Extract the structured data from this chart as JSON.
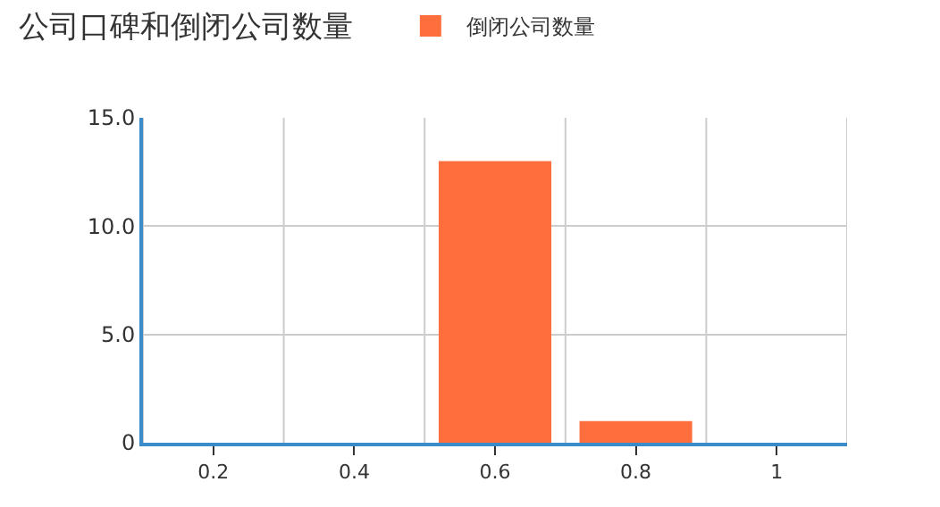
{
  "chart_data": {
    "type": "bar",
    "title": "公司口碑和倒闭公司数量",
    "categories": [
      "0.2",
      "0.4",
      "0.6",
      "0.8",
      "1"
    ],
    "series": [
      {
        "name": "倒闭公司数量",
        "color": "#ff6e3d",
        "values": [
          0,
          0,
          13,
          1,
          0
        ]
      }
    ],
    "ylim": [
      0,
      15
    ],
    "yticks": [
      0,
      {
        "value": 5,
        "label": "5.0"
      },
      {
        "value": 10,
        "label": "10.0"
      },
      {
        "value": 15,
        "label": "15.0"
      }
    ],
    "grid": true,
    "legend": "top"
  }
}
